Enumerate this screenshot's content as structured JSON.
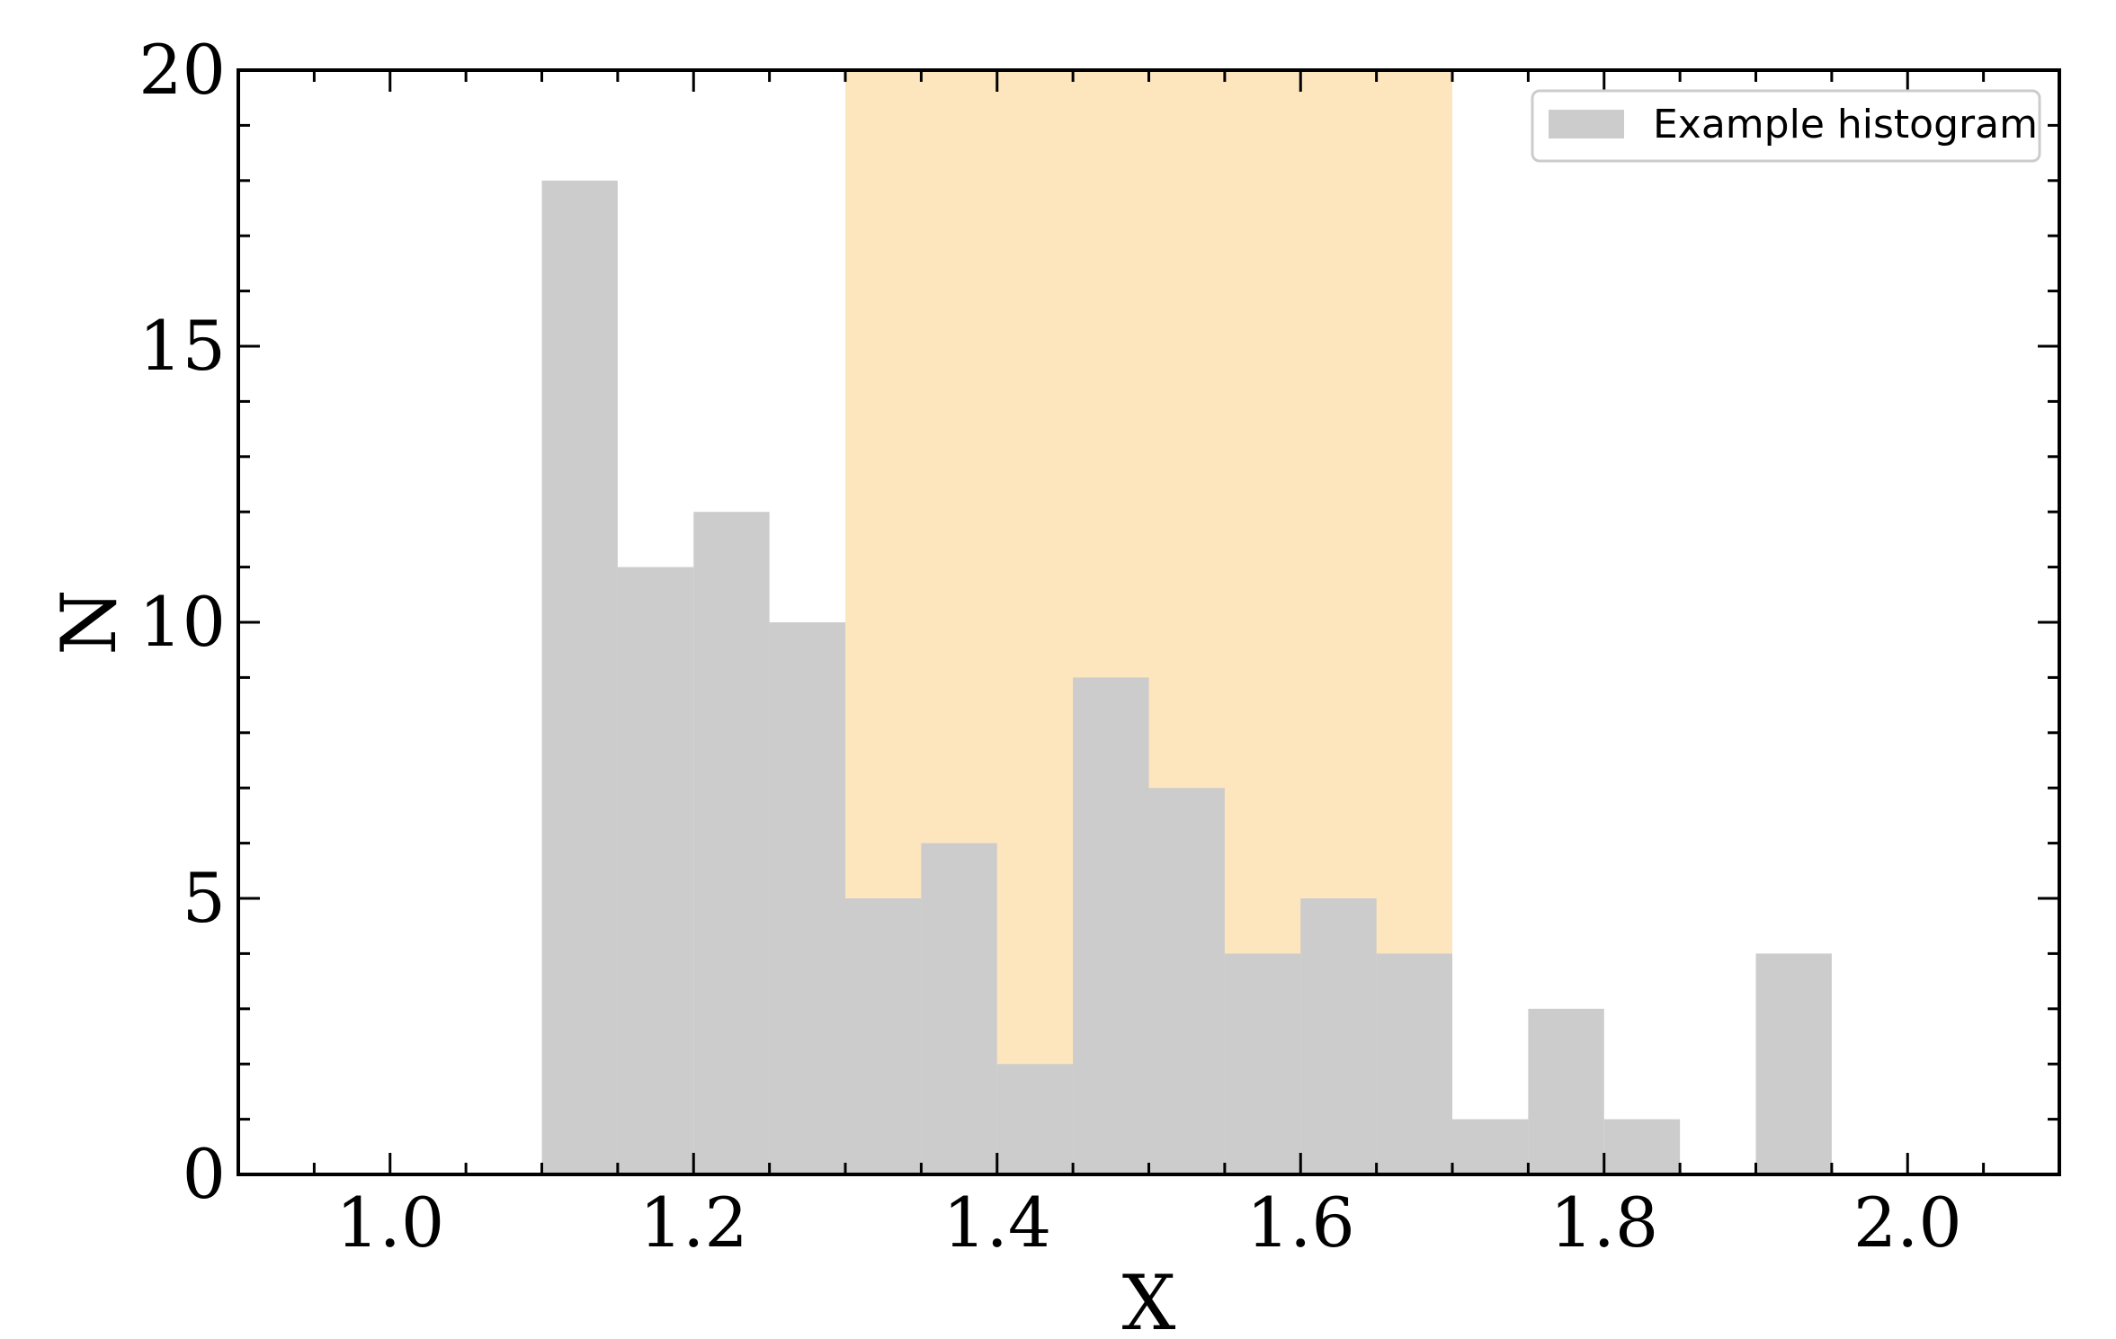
{
  "chart_data": {
    "type": "bar",
    "subtype": "histogram",
    "bin_width": 0.05,
    "bins": [
      {
        "x0": 1.1,
        "x1": 1.15,
        "count": 18
      },
      {
        "x0": 1.15,
        "x1": 1.2,
        "count": 11
      },
      {
        "x0": 1.2,
        "x1": 1.25,
        "count": 12
      },
      {
        "x0": 1.25,
        "x1": 1.3,
        "count": 10
      },
      {
        "x0": 1.3,
        "x1": 1.35,
        "count": 5
      },
      {
        "x0": 1.35,
        "x1": 1.4,
        "count": 6
      },
      {
        "x0": 1.4,
        "x1": 1.45,
        "count": 2
      },
      {
        "x0": 1.45,
        "x1": 1.5,
        "count": 9
      },
      {
        "x0": 1.5,
        "x1": 1.55,
        "count": 7
      },
      {
        "x0": 1.55,
        "x1": 1.6,
        "count": 4
      },
      {
        "x0": 1.6,
        "x1": 1.65,
        "count": 5
      },
      {
        "x0": 1.65,
        "x1": 1.7,
        "count": 4
      },
      {
        "x0": 1.7,
        "x1": 1.75,
        "count": 1
      },
      {
        "x0": 1.75,
        "x1": 1.8,
        "count": 3
      },
      {
        "x0": 1.8,
        "x1": 1.85,
        "count": 1
      },
      {
        "x0": 1.85,
        "x1": 1.9,
        "count": 0
      },
      {
        "x0": 1.9,
        "x1": 1.95,
        "count": 4
      }
    ],
    "highlight_span": {
      "x0": 1.3,
      "x1": 1.7,
      "color": "#fde5be"
    },
    "bar_color": "#cccccc",
    "xlabel": "X",
    "ylabel": "N",
    "xlim": [
      0.9,
      2.1
    ],
    "ylim": [
      0,
      20
    ],
    "xticks": [
      1.0,
      1.2,
      1.4,
      1.6,
      1.8,
      2.0
    ],
    "xtick_labels": [
      "1.0",
      "1.2",
      "1.4",
      "1.6",
      "1.8",
      "2.0"
    ],
    "yticks": [
      0,
      5,
      10,
      15,
      20
    ],
    "ytick_labels": [
      "0",
      "5",
      "10",
      "15",
      "20"
    ],
    "legend": {
      "label": "Example histogram",
      "placement": "top-right"
    },
    "grid": false
  }
}
